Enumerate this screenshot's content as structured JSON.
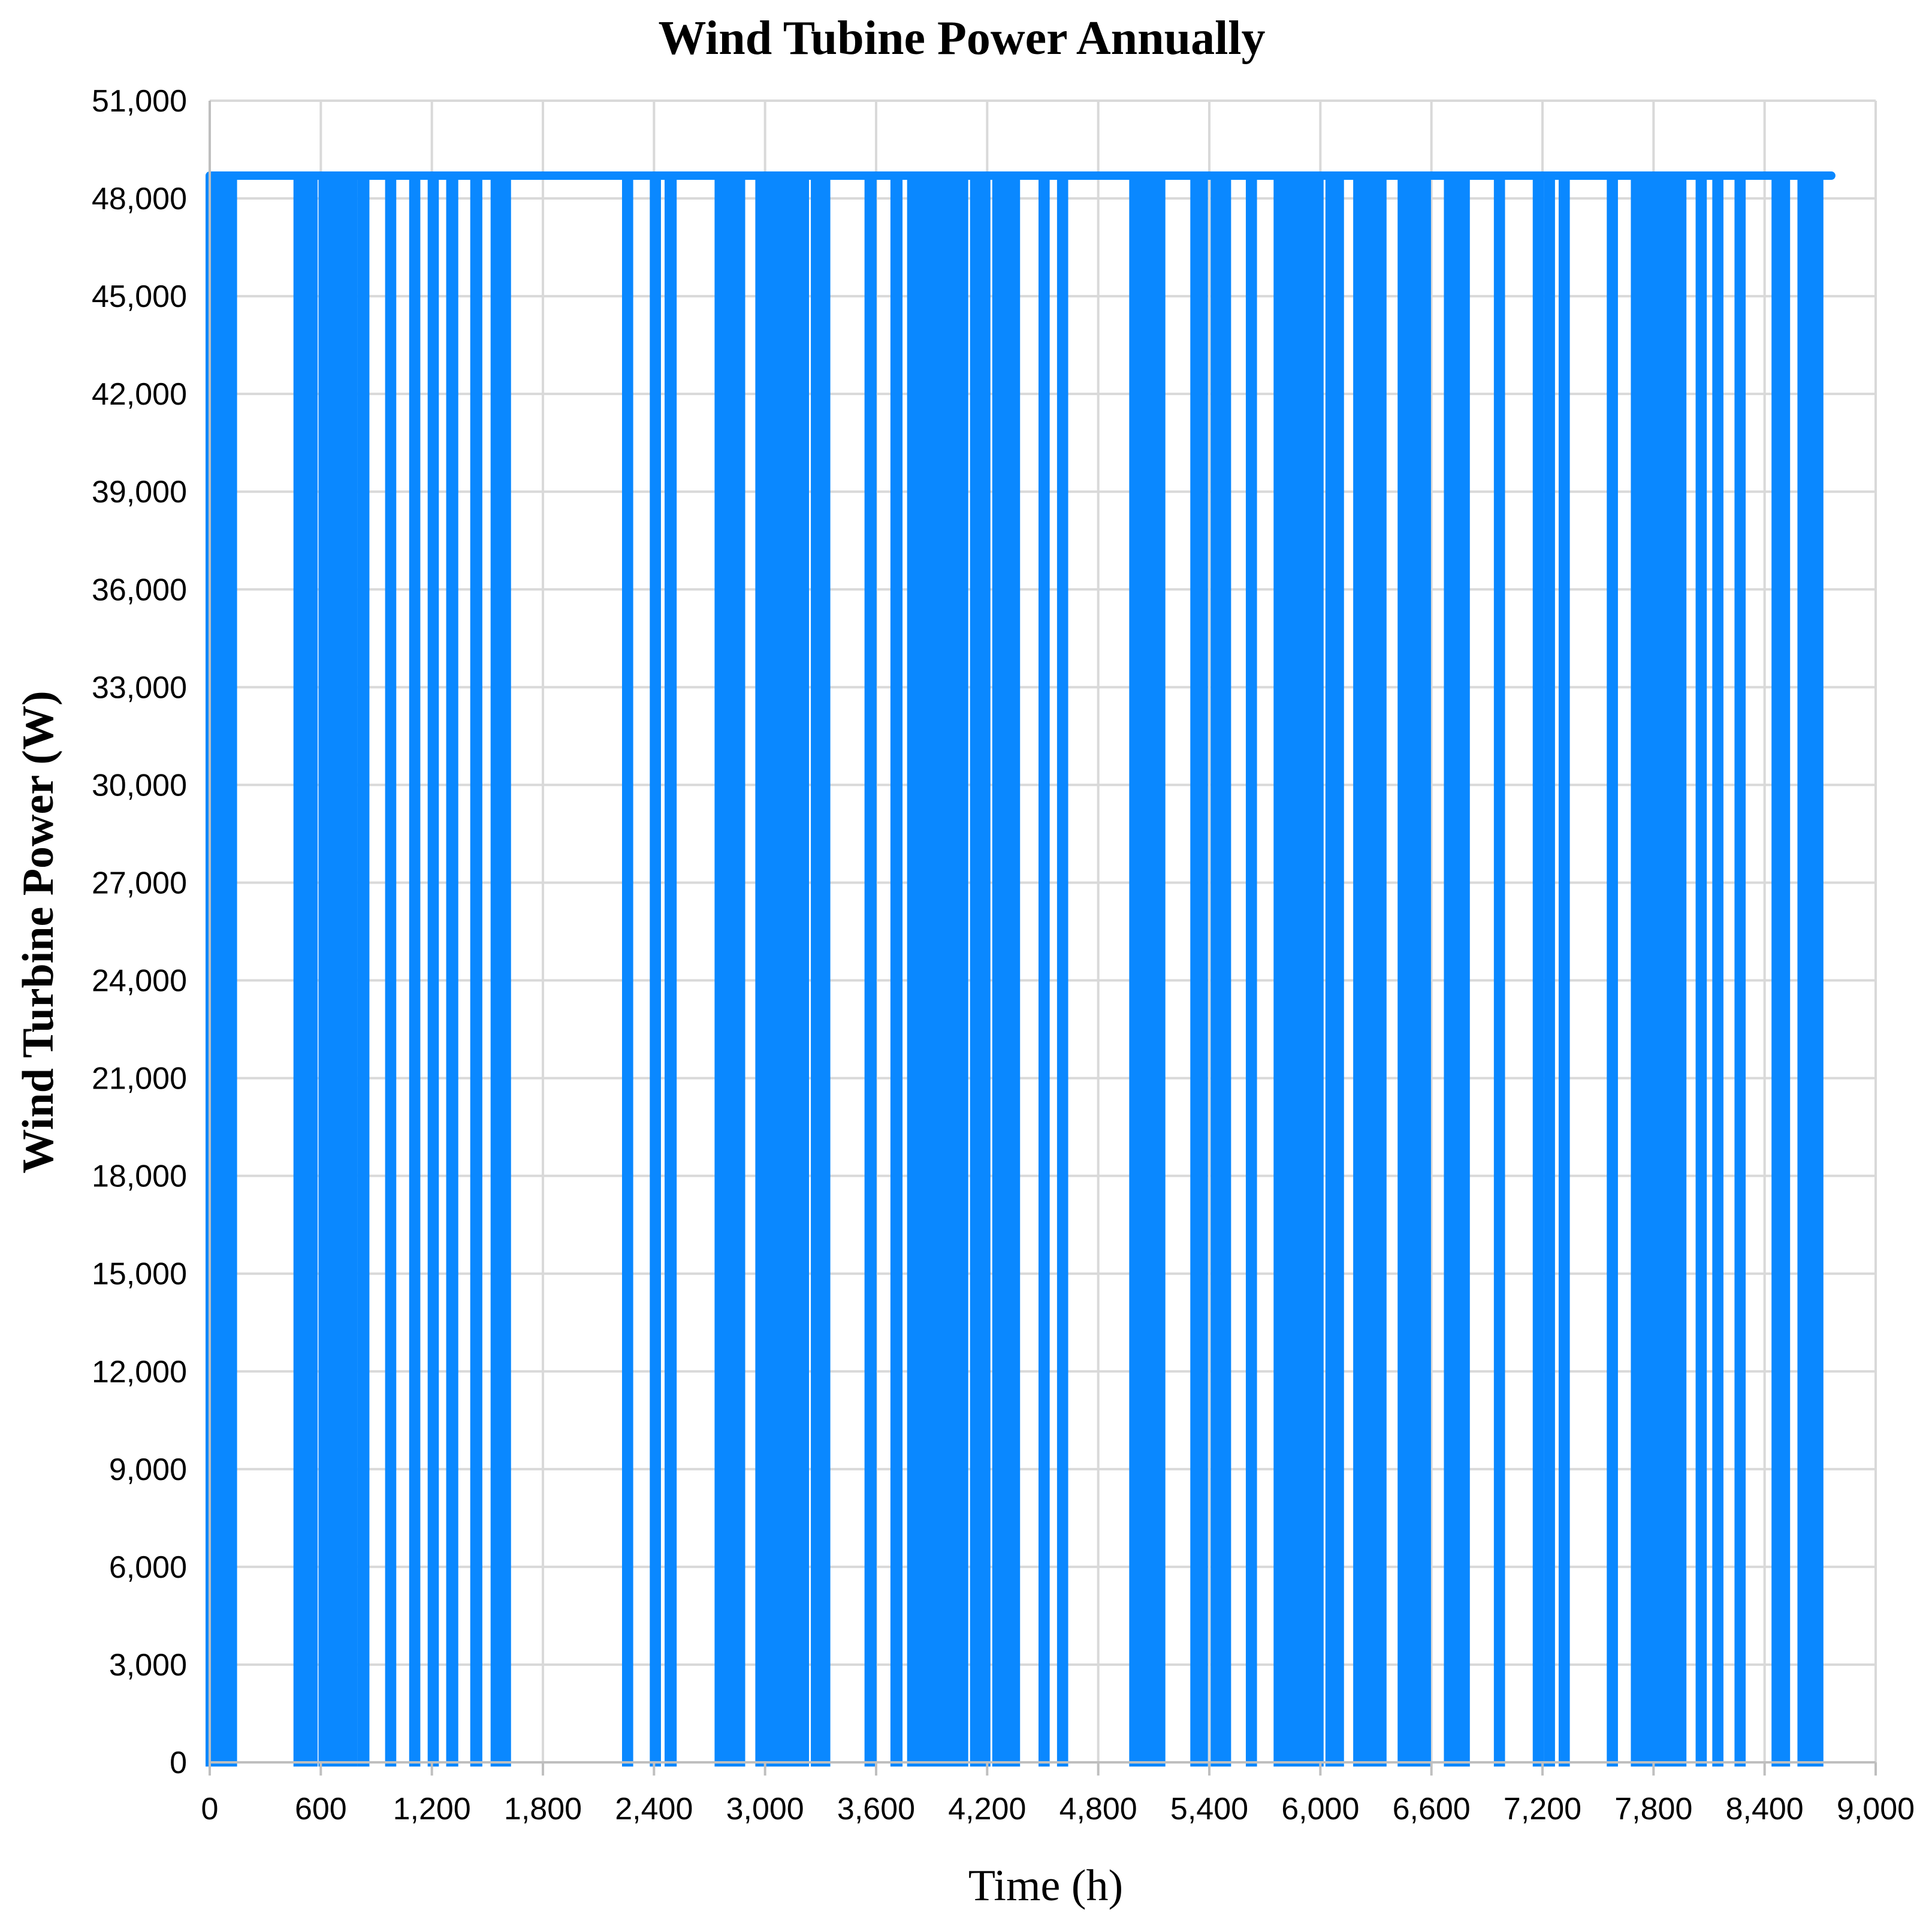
{
  "chart_data": {
    "type": "line",
    "title": "Wind Tubine Power Annually",
    "xlabel": "Time (h)",
    "ylabel": "Wind Turbine Power (W)",
    "xlim": [
      0,
      9000
    ],
    "ylim": [
      0,
      51000
    ],
    "x_ticks": [
      "0",
      "600",
      "1,200",
      "1,800",
      "2,400",
      "3,000",
      "3,600",
      "4,200",
      "4,800",
      "5,400",
      "6,000",
      "6,600",
      "7,200",
      "7,800",
      "8,400",
      "9,000"
    ],
    "y_ticks": [
      "0",
      "3,000",
      "6,000",
      "9,000",
      "12,000",
      "15,000",
      "18,000",
      "21,000",
      "24,000",
      "27,000",
      "30,000",
      "33,000",
      "36,000",
      "39,000",
      "42,000",
      "45,000",
      "48,000",
      "51,000"
    ],
    "grid": true,
    "legend": "none",
    "color": "#0a88ff",
    "series": [
      {
        "rated_power": 48700,
        "x_end": 8760,
        "zero_intervals": [
          [
            0,
            20
          ],
          [
            35,
            55
          ],
          [
            75,
            95
          ],
          [
            105,
            125
          ],
          [
            475,
            490
          ],
          [
            510,
            525
          ],
          [
            545,
            560
          ],
          [
            610,
            625
          ],
          [
            650,
            665
          ],
          [
            680,
            700
          ],
          [
            720,
            740
          ],
          [
            760,
            775
          ],
          [
            820,
            840
          ],
          [
            970,
            985
          ],
          [
            1100,
            1115
          ],
          [
            1200,
            1215
          ],
          [
            1300,
            1320
          ],
          [
            1430,
            1450
          ],
          [
            1540,
            1560
          ],
          [
            1585,
            1605
          ],
          [
            2250,
            2265
          ],
          [
            2400,
            2415
          ],
          [
            2480,
            2500
          ],
          [
            2750,
            2765
          ],
          [
            2785,
            2800
          ],
          [
            2815,
            2835
          ],
          [
            2855,
            2870
          ],
          [
            2970,
            2985
          ],
          [
            3010,
            3025
          ],
          [
            3040,
            3055
          ],
          [
            3070,
            3085
          ],
          [
            3100,
            3115
          ],
          [
            3150,
            3165
          ],
          [
            3200,
            3215
          ],
          [
            3270,
            3290
          ],
          [
            3310,
            3330
          ],
          [
            3560,
            3580
          ],
          [
            3700,
            3720
          ],
          [
            3790,
            3805
          ],
          [
            3840,
            3855
          ],
          [
            3880,
            3895
          ],
          [
            3920,
            3935
          ],
          [
            3960,
            3975
          ],
          [
            3990,
            4005
          ],
          [
            4030,
            4045
          ],
          [
            4060,
            4075
          ],
          [
            4130,
            4145
          ],
          [
            4180,
            4195
          ],
          [
            4250,
            4265
          ],
          [
            4300,
            4320
          ],
          [
            4340,
            4355
          ],
          [
            4500,
            4515
          ],
          [
            4600,
            4615
          ],
          [
            4990,
            5005
          ],
          [
            5030,
            5045
          ],
          [
            5080,
            5095
          ],
          [
            5120,
            5140
          ],
          [
            5320,
            5335
          ],
          [
            5355,
            5370
          ],
          [
            5430,
            5445
          ],
          [
            5480,
            5495
          ],
          [
            5620,
            5635
          ],
          [
            5770,
            5785
          ],
          [
            5810,
            5825
          ],
          [
            5850,
            5865
          ],
          [
            5890,
            5905
          ],
          [
            5930,
            5945
          ],
          [
            5980,
            5995
          ],
          [
            6050,
            6065
          ],
          [
            6090,
            6105
          ],
          [
            6200,
            6215
          ],
          [
            6240,
            6255
          ],
          [
            6290,
            6305
          ],
          [
            6320,
            6335
          ],
          [
            6440,
            6455
          ],
          [
            6480,
            6495
          ],
          [
            6520,
            6535
          ],
          [
            6560,
            6575
          ],
          [
            6690,
            6705
          ],
          [
            6730,
            6745
          ],
          [
            6770,
            6785
          ],
          [
            6960,
            6975
          ],
          [
            7170,
            7185
          ],
          [
            7230,
            7245
          ],
          [
            7310,
            7325
          ],
          [
            7570,
            7585
          ],
          [
            7700,
            7715
          ],
          [
            7740,
            7755
          ],
          [
            7780,
            7795
          ],
          [
            7820,
            7835
          ],
          [
            7860,
            7875
          ],
          [
            7900,
            7915
          ],
          [
            7940,
            7955
          ],
          [
            8050,
            8065
          ],
          [
            8140,
            8155
          ],
          [
            8260,
            8275
          ],
          [
            8460,
            8475
          ],
          [
            8500,
            8515
          ],
          [
            8600,
            8615
          ],
          [
            8640,
            8655
          ],
          [
            8680,
            8695
          ]
        ]
      }
    ]
  }
}
